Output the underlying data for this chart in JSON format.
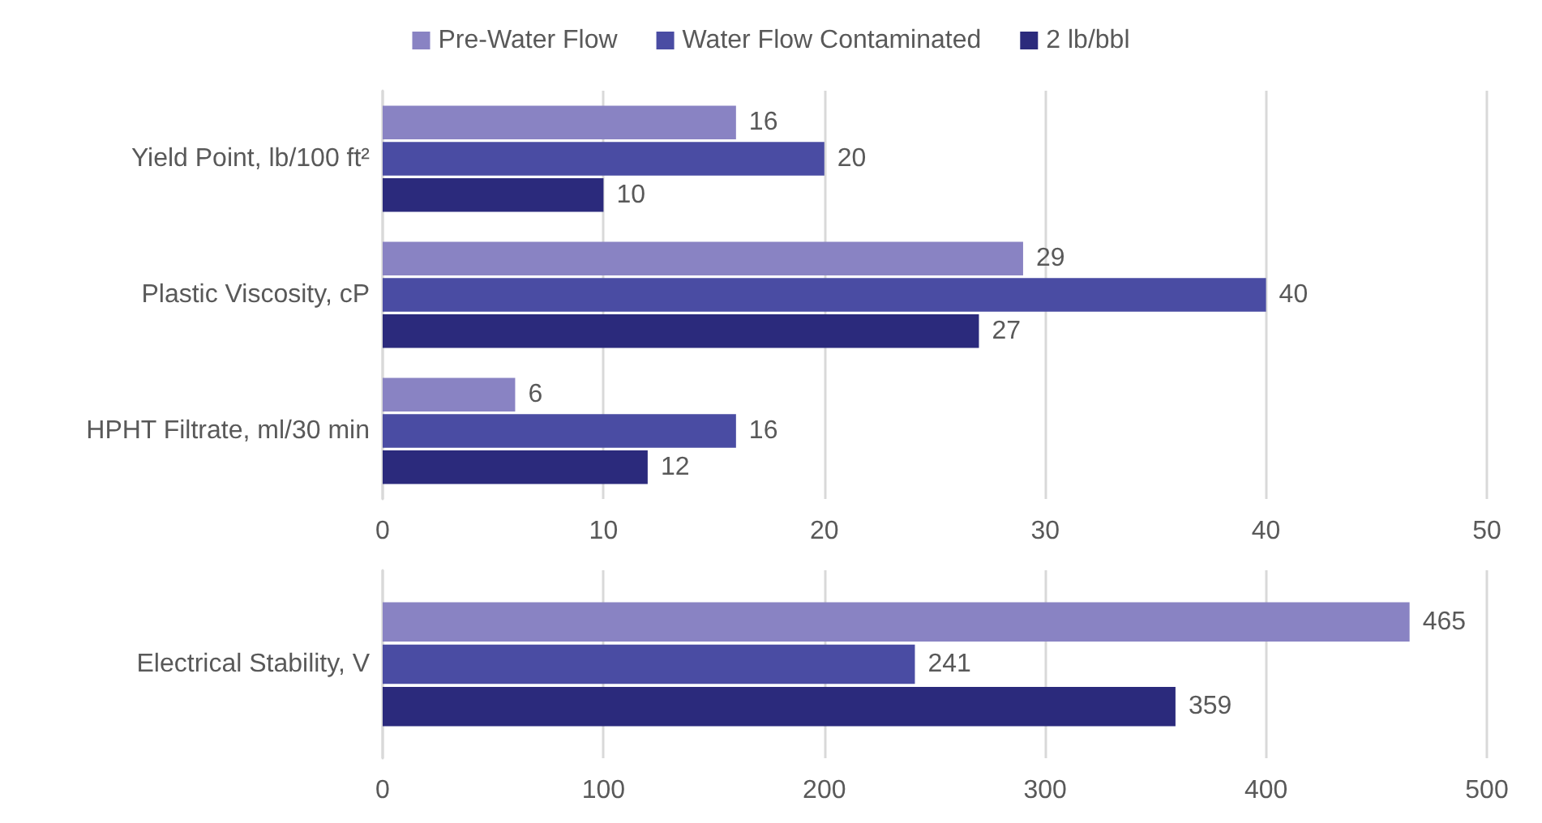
{
  "chart_data": [
    {
      "type": "bar",
      "orientation": "horizontal",
      "categories": [
        "Yield Point, lb/100 ft²",
        "Plastic Viscosity, cP",
        "HPHT Filtrate, ml/30 min"
      ],
      "series": [
        {
          "name": "Pre-Water Flow",
          "color": "#8983c3",
          "values": [
            16,
            29,
            6
          ]
        },
        {
          "name": "Water Flow Contaminated",
          "color": "#4a4ca3",
          "values": [
            20,
            40,
            16
          ]
        },
        {
          "name": "2 lb/bbl",
          "color": "#2b2a7c",
          "values": [
            10,
            27,
            12
          ]
        }
      ],
      "xlim": [
        0,
        50
      ],
      "xticks": [
        0,
        10,
        20,
        30,
        40,
        50
      ],
      "grid": "x",
      "legend": "top",
      "data_labels": true
    },
    {
      "type": "bar",
      "orientation": "horizontal",
      "categories": [
        "Electrical Stability, V"
      ],
      "series": [
        {
          "color": "#8983c3",
          "values": [
            465
          ]
        },
        {
          "color": "#4a4ca3",
          "values": [
            241
          ]
        },
        {
          "color": "#2b2a7c",
          "values": [
            359
          ]
        }
      ],
      "xlim": [
        0,
        500
      ],
      "xticks": [
        0,
        100,
        200,
        300,
        400,
        500
      ],
      "grid": "x",
      "data_labels": true
    }
  ]
}
